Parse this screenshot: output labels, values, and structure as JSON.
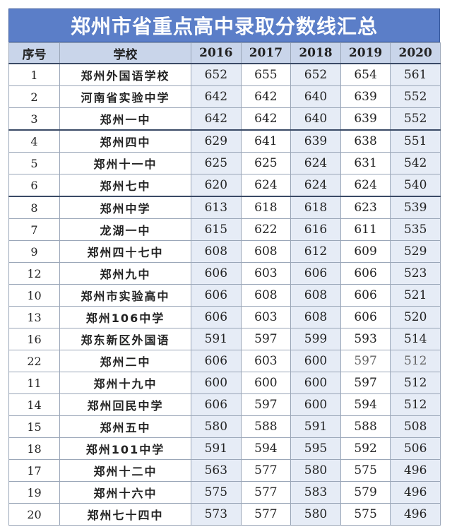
{
  "title": "郑州市省重点高中录取分数线汇总",
  "headers": {
    "no": "序号",
    "school": "学校",
    "years": [
      "2016",
      "2017",
      "2018",
      "2019",
      "2020"
    ]
  },
  "rows": [
    {
      "no": "1",
      "school": "郑州外国语学校",
      "scores": [
        "652",
        "655",
        "652",
        "654",
        "561"
      ]
    },
    {
      "no": "2",
      "school": "河南省实验中学",
      "scores": [
        "642",
        "642",
        "640",
        "639",
        "552"
      ]
    },
    {
      "no": "3",
      "school": "郑州一中",
      "scores": [
        "642",
        "642",
        "640",
        "639",
        "552"
      ]
    },
    {
      "no": "4",
      "school": "郑州四中",
      "scores": [
        "629",
        "641",
        "639",
        "638",
        "551"
      ]
    },
    {
      "no": "5",
      "school": "郑州十一中",
      "scores": [
        "625",
        "625",
        "624",
        "631",
        "542"
      ]
    },
    {
      "no": "6",
      "school": "郑州七中",
      "scores": [
        "620",
        "624",
        "624",
        "624",
        "540"
      ]
    },
    {
      "no": "8",
      "school": "郑州中学",
      "scores": [
        "613",
        "618",
        "618",
        "623",
        "539"
      ]
    },
    {
      "no": "7",
      "school": "龙湖一中",
      "scores": [
        "615",
        "622",
        "616",
        "611",
        "535"
      ]
    },
    {
      "no": "9",
      "school": "郑州四十七中",
      "scores": [
        "608",
        "608",
        "612",
        "609",
        "529"
      ]
    },
    {
      "no": "12",
      "school": "郑州九中",
      "scores": [
        "606",
        "603",
        "606",
        "606",
        "523"
      ]
    },
    {
      "no": "10",
      "school": "郑州市实验高中",
      "scores": [
        "606",
        "608",
        "608",
        "606",
        "521"
      ]
    },
    {
      "no": "13",
      "school": "郑州106中学",
      "scores": [
        "606",
        "603",
        "608",
        "606",
        "520"
      ]
    },
    {
      "no": "16",
      "school": "郑东新区外国语",
      "scores": [
        "591",
        "597",
        "599",
        "593",
        "514"
      ]
    },
    {
      "no": "22",
      "school": "郑州二中",
      "scores": [
        "606",
        "603",
        "600",
        "597",
        "512"
      ]
    },
    {
      "no": "11",
      "school": "郑州十九中",
      "scores": [
        "600",
        "600",
        "600",
        "597",
        "512"
      ]
    },
    {
      "no": "14",
      "school": "郑州回民中学",
      "scores": [
        "606",
        "597",
        "600",
        "594",
        "512"
      ]
    },
    {
      "no": "15",
      "school": "郑州五中",
      "scores": [
        "580",
        "588",
        "591",
        "588",
        "508"
      ]
    },
    {
      "no": "18",
      "school": "郑州101中学",
      "scores": [
        "591",
        "594",
        "595",
        "592",
        "506"
      ]
    },
    {
      "no": "17",
      "school": "郑州十二中",
      "scores": [
        "563",
        "577",
        "580",
        "575",
        "496"
      ]
    },
    {
      "no": "19",
      "school": "郑州十六中",
      "scores": [
        "575",
        "577",
        "583",
        "579",
        "496"
      ]
    },
    {
      "no": "20",
      "school": "郑州七十四中",
      "scores": [
        "573",
        "577",
        "580",
        "575",
        "496"
      ]
    }
  ],
  "colors": {
    "title_bg": "#5b7ec8",
    "header_bg": "#c9d5ea",
    "shaded_column_bg": "#e6ecf6",
    "group_divider": "#3a4a66"
  }
}
